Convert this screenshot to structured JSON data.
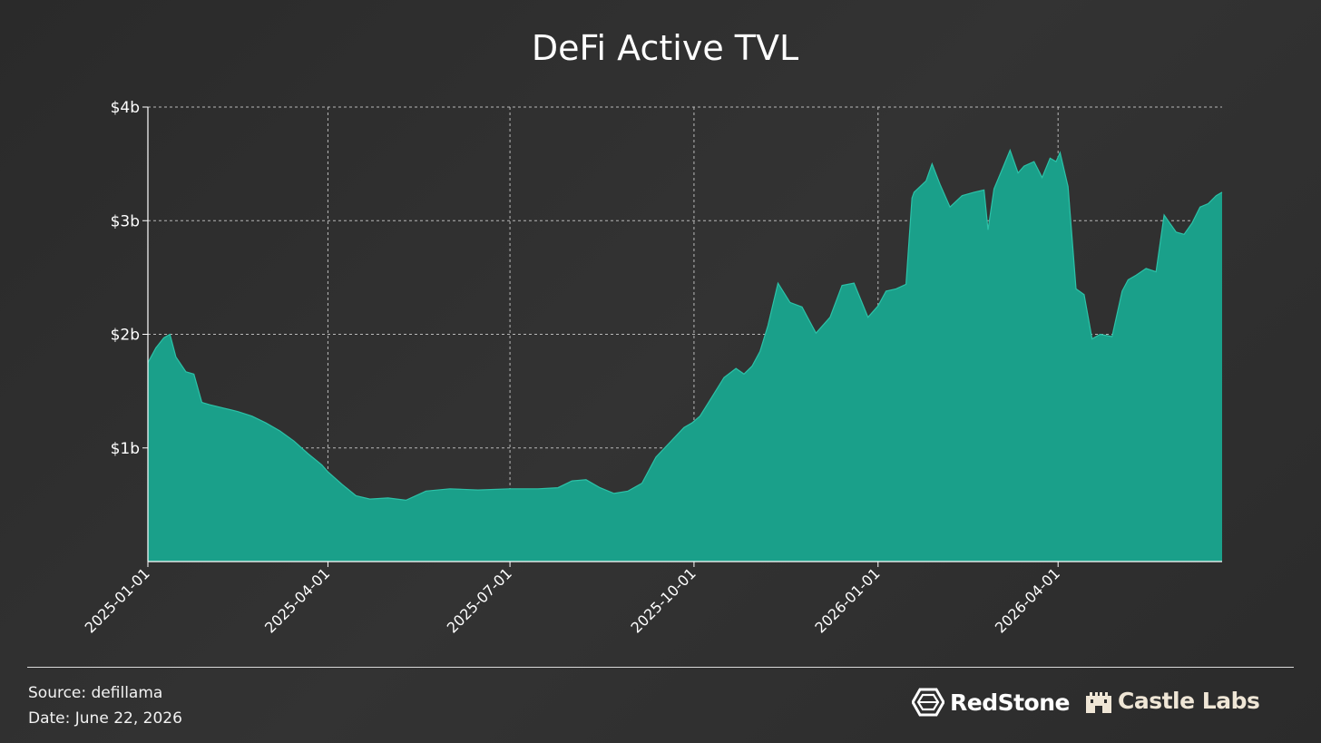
{
  "chart_data": {
    "type": "area",
    "title": "DeFi Active TVL",
    "xlabel": "",
    "ylabel": "",
    "x_ticks": [
      "2025-01-01",
      "2025-04-01",
      "2025-07-01",
      "2025-10-01",
      "2026-01-01",
      "2026-04-01"
    ],
    "y_ticks": [
      "$1b",
      "$2b",
      "$3b",
      "$4b"
    ],
    "ylim": [
      0,
      4
    ],
    "xlim": [
      "2025-01-01",
      "2026-06-22"
    ],
    "y_unit": "billions USD",
    "grid": true,
    "colors": {
      "fill": "#1aa08a",
      "line": "#2cc2a8",
      "grid": "#d0d0d0",
      "background": "#2e2e2e"
    },
    "series": [
      {
        "x": [
          "2025-01-01",
          "2025-01-05",
          "2025-01-09",
          "2025-01-12",
          "2025-01-15",
          "2025-01-20",
          "2025-01-24",
          "2025-01-28",
          "2025-02-01",
          "2025-02-08",
          "2025-02-15",
          "2025-02-22",
          "2025-03-01",
          "2025-03-08",
          "2025-03-15",
          "2025-03-22",
          "2025-03-29",
          "2025-04-01",
          "2025-04-08",
          "2025-04-15",
          "2025-04-22",
          "2025-05-01",
          "2025-05-10",
          "2025-05-20",
          "2025-06-01",
          "2025-06-15",
          "2025-07-01",
          "2025-07-15",
          "2025-07-25",
          "2025-08-01",
          "2025-08-08",
          "2025-08-15",
          "2025-08-22",
          "2025-08-29",
          "2025-09-05",
          "2025-09-12",
          "2025-09-19",
          "2025-09-26",
          "2025-09-30",
          "2025-10-04",
          "2025-10-10",
          "2025-10-16",
          "2025-10-22",
          "2025-10-26",
          "2025-10-30",
          "2025-11-03",
          "2025-11-07",
          "2025-11-12",
          "2025-11-18",
          "2025-11-24",
          "2025-12-01",
          "2025-12-08",
          "2025-12-14",
          "2025-12-20",
          "2025-12-27",
          "2026-01-01",
          "2026-01-05",
          "2026-01-10",
          "2026-01-15",
          "2026-01-18",
          "2026-01-19",
          "2026-01-25",
          "2026-01-28",
          "2026-02-01",
          "2026-02-06",
          "2026-02-12",
          "2026-02-18",
          "2026-02-23",
          "2026-02-25",
          "2026-02-28",
          "2026-03-04",
          "2026-03-08",
          "2026-03-12",
          "2026-03-15",
          "2026-03-20",
          "2026-03-24",
          "2026-03-28",
          "2026-03-31",
          "2026-04-02",
          "2026-04-06",
          "2026-04-10",
          "2026-04-14",
          "2026-04-18",
          "2026-04-22",
          "2026-04-28",
          "2026-05-03",
          "2026-05-06",
          "2026-05-10",
          "2026-05-15",
          "2026-05-20",
          "2026-05-24",
          "2026-05-26",
          "2026-05-30",
          "2026-06-03",
          "2026-06-07",
          "2026-06-11",
          "2026-06-15",
          "2026-06-19",
          "2026-06-22"
        ],
        "y": [
          1.75,
          1.88,
          1.97,
          2.0,
          1.8,
          1.67,
          1.65,
          1.4,
          1.38,
          1.35,
          1.32,
          1.28,
          1.22,
          1.15,
          1.06,
          0.95,
          0.85,
          0.79,
          0.68,
          0.58,
          0.55,
          0.56,
          0.54,
          0.62,
          0.64,
          0.63,
          0.64,
          0.64,
          0.65,
          0.71,
          0.72,
          0.65,
          0.6,
          0.62,
          0.69,
          0.92,
          1.05,
          1.18,
          1.22,
          1.28,
          1.45,
          1.62,
          1.7,
          1.65,
          1.72,
          1.85,
          2.08,
          2.45,
          2.28,
          2.24,
          2.01,
          2.15,
          2.43,
          2.45,
          2.15,
          2.25,
          2.38,
          2.4,
          2.44,
          3.2,
          3.25,
          3.35,
          3.5,
          3.32,
          3.12,
          3.22,
          3.25,
          3.27,
          2.92,
          3.28,
          3.45,
          3.62,
          3.42,
          3.48,
          3.52,
          3.38,
          3.55,
          3.52,
          3.6,
          3.3,
          2.4,
          2.35,
          1.96,
          2.0,
          1.98,
          2.38,
          2.48,
          2.52,
          2.58,
          2.55,
          3.05,
          3.0,
          2.9,
          2.88,
          2.98,
          3.12,
          3.15,
          3.22,
          3.25
        ]
      }
    ]
  },
  "footer": {
    "source": "Source: defillama",
    "date": "Date: June 22, 2026"
  },
  "logos": {
    "redstone": "RedStone",
    "castle": "Castle Labs"
  }
}
